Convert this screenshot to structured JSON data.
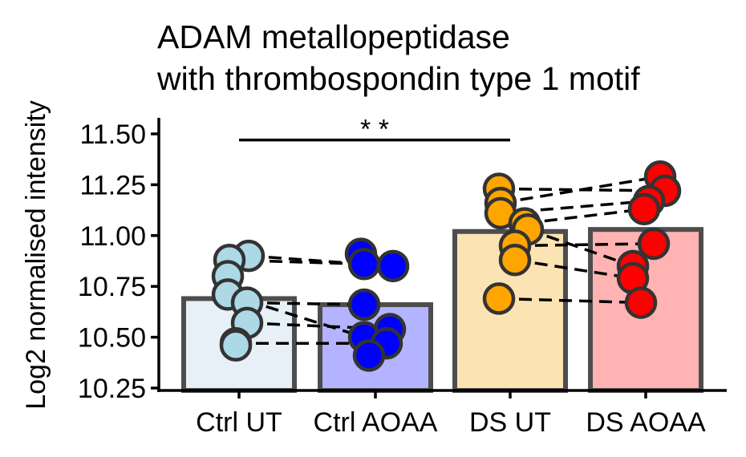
{
  "chart_data": {
    "type": "bar",
    "title": [
      "ADAM metallopeptidase",
      "with thrombospondin type 1 motif"
    ],
    "ylabel": "Log2 normalised intensity",
    "xlabel": "",
    "ylim": [
      10.25,
      11.58
    ],
    "yticks": [
      "10.25",
      "10.50",
      "10.75",
      "11.00",
      "11.25",
      "11.50"
    ],
    "categories": [
      "Ctrl UT",
      "Ctrl AOAA",
      "DS UT",
      "DS AOAA"
    ],
    "values": [
      10.69,
      10.66,
      11.02,
      11.03
    ],
    "bar_fill": [
      "#e6f0f6",
      "#b3b3ff",
      "#fce3b3",
      "#ffb3b3"
    ],
    "point_fill": [
      "#add8e6",
      "#0000ff",
      "#ffa500",
      "#ff0000"
    ],
    "edge_color": "#4d4d4d",
    "points": [
      [
        10.9,
        10.88,
        10.8,
        10.71,
        10.67,
        10.57,
        10.47,
        10.46
      ],
      [
        10.91,
        10.86,
        10.85,
        10.66,
        10.54,
        10.5,
        10.47,
        10.41
      ],
      [
        11.23,
        11.16,
        11.11,
        11.06,
        11.03,
        10.95,
        10.88,
        10.69
      ],
      [
        11.29,
        11.22,
        11.17,
        11.13,
        10.96,
        10.85,
        10.79,
        10.67
      ]
    ],
    "pairs": [
      [
        [
          0,
          0
        ],
        [
          1,
          2
        ]
      ],
      [
        [
          0,
          1
        ],
        [
          1,
          1
        ]
      ],
      [
        [
          0,
          4
        ],
        [
          1,
          3
        ]
      ],
      [
        [
          0,
          3
        ],
        [
          1,
          5
        ]
      ],
      [
        [
          0,
          5
        ],
        [
          1,
          4
        ]
      ],
      [
        [
          0,
          6
        ],
        [
          1,
          6
        ]
      ],
      [
        [
          2,
          0
        ],
        [
          3,
          1
        ]
      ],
      [
        [
          2,
          1
        ],
        [
          3,
          0
        ]
      ],
      [
        [
          2,
          2
        ],
        [
          3,
          2
        ]
      ],
      [
        [
          2,
          3
        ],
        [
          3,
          3
        ]
      ],
      [
        [
          2,
          4
        ],
        [
          3,
          5
        ]
      ],
      [
        [
          2,
          5
        ],
        [
          3,
          4
        ]
      ],
      [
        [
          2,
          6
        ],
        [
          3,
          6
        ]
      ],
      [
        [
          2,
          7
        ],
        [
          3,
          7
        ]
      ]
    ],
    "significance": {
      "from": "Ctrl UT",
      "to": "DS UT",
      "y": 11.47,
      "label": "* *"
    },
    "grid": false,
    "legend": "none"
  }
}
